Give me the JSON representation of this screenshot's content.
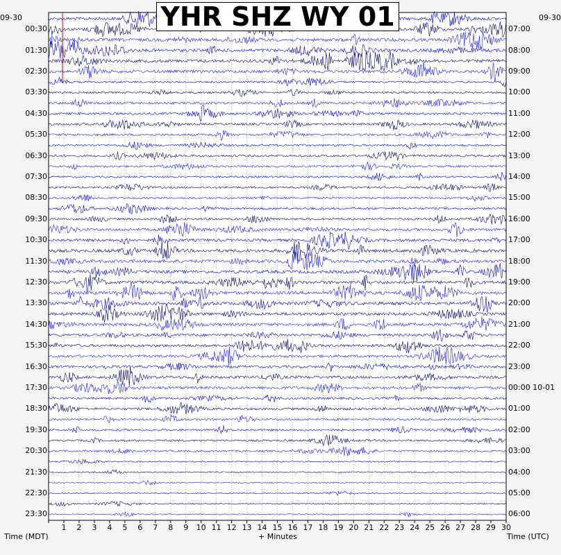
{
  "chart_data": {
    "type": "line",
    "title": "YHR SHZ WY 01",
    "xlabel": "+ Minutes",
    "ylabel_left": "Time (MDT)",
    "ylabel_right": "Time (UTC)",
    "date_left": "09-30",
    "date_right": "09-30",
    "xlim": [
      0,
      30
    ],
    "x_ticks": [
      "1",
      "2",
      "3",
      "4",
      "5",
      "6",
      "7",
      "8",
      "9",
      "10",
      "11",
      "12",
      "13",
      "14",
      "15",
      "16",
      "17",
      "18",
      "19",
      "20",
      "21",
      "22",
      "23",
      "24",
      "25",
      "26",
      "27",
      "28",
      "29",
      "30"
    ],
    "left_labels": [
      "00:30",
      "01:30",
      "02:30",
      "03:30",
      "04:30",
      "05:30",
      "06:30",
      "07:30",
      "08:30",
      "09:30",
      "10:30",
      "11:30",
      "12:30",
      "13:30",
      "14:30",
      "15:30",
      "16:30",
      "17:30",
      "18:30",
      "19:30",
      "20:30",
      "21:30",
      "22:30",
      "23:30"
    ],
    "right_labels": [
      "07:00",
      "08:00",
      "09:00",
      "10:00",
      "11:00",
      "12:00",
      "13:00",
      "14:00",
      "15:00",
      "16:00",
      "17:00",
      "18:00",
      "19:00",
      "20:00",
      "21:00",
      "22:00",
      "23:00",
      "00:00 10-01",
      "01:00",
      "02:00",
      "03:00",
      "04:00",
      "05:00",
      "06:00"
    ],
    "trace_colors": [
      "#0000d8",
      "#000066",
      "#1a1aff"
    ],
    "trace_count": 48,
    "hourly_activity": [
      0.9,
      1.0,
      0.9,
      0.35,
      0.55,
      0.5,
      0.45,
      0.35,
      0.4,
      0.45,
      0.8,
      1.0,
      0.95,
      1.0,
      0.85,
      0.75,
      0.7,
      0.75,
      0.55,
      0.45,
      0.4,
      0.05,
      0.03,
      0.02
    ]
  }
}
